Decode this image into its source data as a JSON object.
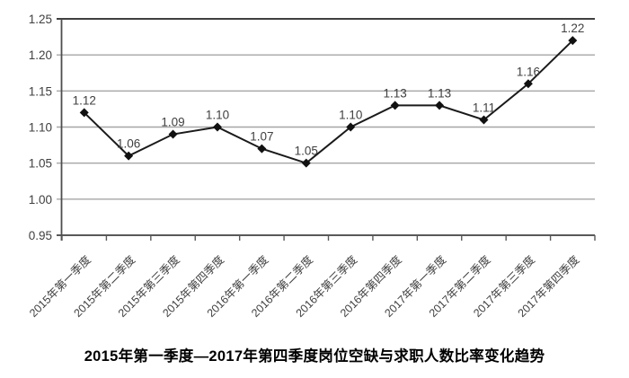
{
  "chart_data": {
    "type": "line",
    "title": "2015年第一季度—2017年第四季度岗位空缺与求职人数比率变化趋势",
    "categories": [
      "2015年第一季度",
      "2015年第二季度",
      "2015年第三季度",
      "2015年第四季度",
      "2016年第一季度",
      "2016年第二季度",
      "2016年第三季度",
      "2016年第四季度",
      "2017年第一季度",
      "2017年第二季度",
      "2017年第三季度",
      "2017年第四季度"
    ],
    "values": [
      1.12,
      1.06,
      1.09,
      1.1,
      1.07,
      1.05,
      1.1,
      1.13,
      1.13,
      1.11,
      1.16,
      1.22
    ],
    "data_labels": [
      "1.12",
      "1.06",
      "1.09",
      "1.10",
      "1.07",
      "1.05",
      "1.10",
      "1.13",
      "1.13",
      "1.11",
      "1.16",
      "1.22"
    ],
    "y_ticks": [
      0.95,
      1.0,
      1.05,
      1.1,
      1.15,
      1.2,
      1.25
    ],
    "y_tick_labels": [
      "0.95",
      "1.00",
      "1.05",
      "1.10",
      "1.15",
      "1.20",
      "1.25"
    ],
    "ylim": [
      0.95,
      1.25
    ],
    "xlabel": "",
    "ylabel": "",
    "grid": true,
    "legend": "none",
    "marker": "diamond",
    "colors": {
      "background": "#ffffff",
      "line": "#1a1a1a",
      "marker": "#111111",
      "grid": "#a6a6a6",
      "axis": "#595959",
      "plot_top_border": "#404040",
      "tick_label": "#404040",
      "data_label": "#404040",
      "title": "#000000"
    }
  }
}
